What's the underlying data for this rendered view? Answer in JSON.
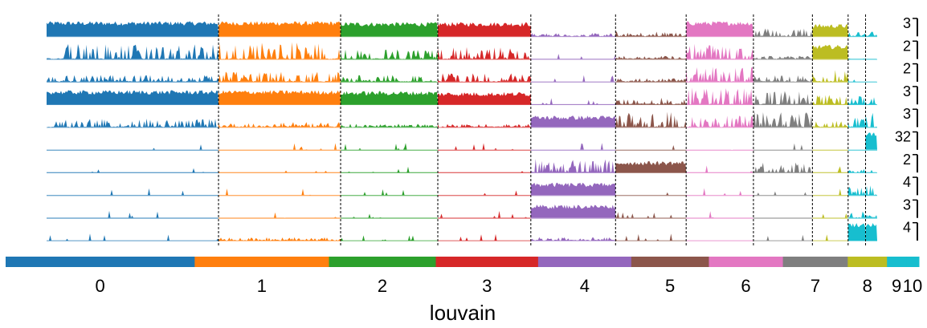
{
  "chart_data": {
    "type": "area",
    "title": "",
    "xlabel": "louvain",
    "ylabel": "",
    "ylim_labels": [
      "3",
      "2",
      "2",
      "3",
      "3",
      "32",
      "2",
      "4",
      "3",
      "4"
    ],
    "categories": [
      "0",
      "1",
      "2",
      "3",
      "4",
      "5",
      "6",
      "7",
      "8",
      "9",
      "10"
    ],
    "category_colors": [
      "#1f77b4",
      "#ff7f0e",
      "#2ca02c",
      "#d62728",
      "#9467bd",
      "#8c564b",
      "#e377c2",
      "#7f7f7f",
      "#bcbd22",
      "#17becf",
      "#17becf"
    ],
    "category_label_positions_note": "cells per cluster proportional",
    "cluster_cell_fractions": [
      0.207,
      0.147,
      0.117,
      0.112,
      0.102,
      0.085,
      0.081,
      0.071,
      0.043,
      0.021,
      0.014
    ],
    "genes_count": 10,
    "series": [
      {
        "values": [
          0.75,
          0.75,
          0.7,
          0.7,
          0.1,
          0.15,
          0.75,
          0.25,
          0.6,
          0.15,
          0.15
        ]
      },
      {
        "values": [
          0.45,
          0.5,
          0.3,
          0.35,
          0.05,
          0.1,
          0.45,
          0.1,
          0.7,
          0.05,
          0.05
        ]
      },
      {
        "values": [
          0.2,
          0.3,
          0.2,
          0.25,
          0.05,
          0.1,
          0.45,
          0.2,
          0.35,
          0.05,
          0.05
        ]
      },
      {
        "values": [
          0.7,
          0.7,
          0.65,
          0.6,
          0.05,
          0.2,
          0.5,
          0.4,
          0.45,
          0.25,
          0.25
        ]
      },
      {
        "values": [
          0.25,
          0.15,
          0.1,
          0.1,
          0.55,
          0.45,
          0.35,
          0.45,
          0.25,
          0.45,
          0.45
        ]
      },
      {
        "values": [
          0.02,
          0.01,
          0.01,
          0.01,
          0.05,
          0.02,
          0.01,
          0.02,
          0.02,
          0.05,
          0.9
        ]
      },
      {
        "values": [
          0.01,
          0.01,
          0.01,
          0.01,
          0.4,
          0.55,
          0.02,
          0.3,
          0.05,
          0.1,
          0.05
        ]
      },
      {
        "values": [
          0.01,
          0.01,
          0.01,
          0.01,
          0.6,
          0.02,
          0.01,
          0.05,
          0.02,
          0.25,
          0.3
        ]
      },
      {
        "values": [
          0.01,
          0.01,
          0.01,
          0.01,
          0.65,
          0.05,
          0.01,
          0.01,
          0.01,
          0.2,
          0.1
        ]
      },
      {
        "values": [
          0.02,
          0.1,
          0.05,
          0.02,
          0.1,
          0.02,
          0.02,
          0.01,
          0.01,
          0.9,
          0.9
        ]
      }
    ],
    "grid": false,
    "legend": "none"
  }
}
